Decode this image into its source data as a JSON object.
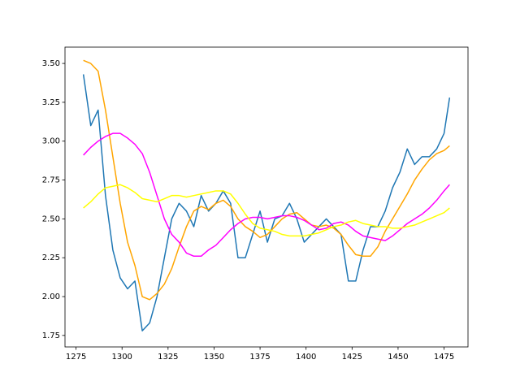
{
  "chart_data": {
    "type": "line",
    "x": [
      1279,
      1283,
      1287,
      1291,
      1295,
      1299,
      1303,
      1307,
      1311,
      1315,
      1319,
      1323,
      1327,
      1331,
      1335,
      1339,
      1343,
      1347,
      1351,
      1355,
      1359,
      1363,
      1367,
      1371,
      1375,
      1379,
      1383,
      1387,
      1391,
      1395,
      1399,
      1403,
      1407,
      1411,
      1415,
      1419,
      1423,
      1427,
      1431,
      1435,
      1439,
      1443,
      1447,
      1451,
      1455,
      1459,
      1463,
      1467,
      1471,
      1475,
      1478
    ],
    "series": [
      {
        "color": "#1f77b4",
        "values": [
          3.43,
          3.1,
          3.2,
          2.65,
          2.3,
          2.12,
          2.05,
          2.1,
          1.78,
          1.83,
          2.0,
          2.25,
          2.5,
          2.6,
          2.55,
          2.45,
          2.65,
          2.55,
          2.6,
          2.68,
          2.6,
          2.25,
          2.25,
          2.4,
          2.55,
          2.35,
          2.5,
          2.52,
          2.6,
          2.5,
          2.35,
          2.4,
          2.45,
          2.5,
          2.45,
          2.4,
          2.1,
          2.1,
          2.3,
          2.45,
          2.45,
          2.55,
          2.7,
          2.8,
          2.95,
          2.85,
          2.9,
          2.9,
          2.95,
          3.05,
          3.28
        ]
      },
      {
        "color": "#ffa500",
        "values": [
          3.52,
          3.5,
          3.45,
          3.2,
          2.9,
          2.6,
          2.35,
          2.2,
          2.0,
          1.98,
          2.02,
          2.08,
          2.18,
          2.32,
          2.45,
          2.55,
          2.58,
          2.56,
          2.6,
          2.62,
          2.58,
          2.5,
          2.45,
          2.42,
          2.38,
          2.4,
          2.45,
          2.5,
          2.53,
          2.54,
          2.5,
          2.46,
          2.45,
          2.46,
          2.44,
          2.4,
          2.33,
          2.27,
          2.26,
          2.26,
          2.32,
          2.42,
          2.5,
          2.58,
          2.66,
          2.75,
          2.82,
          2.88,
          2.92,
          2.94,
          2.97
        ]
      },
      {
        "color": "#ff00ff",
        "values": [
          2.91,
          2.96,
          3.0,
          3.03,
          3.05,
          3.05,
          3.02,
          2.98,
          2.92,
          2.8,
          2.65,
          2.5,
          2.4,
          2.35,
          2.28,
          2.26,
          2.26,
          2.3,
          2.33,
          2.38,
          2.43,
          2.47,
          2.5,
          2.51,
          2.51,
          2.5,
          2.51,
          2.52,
          2.52,
          2.51,
          2.49,
          2.46,
          2.43,
          2.44,
          2.47,
          2.48,
          2.46,
          2.42,
          2.39,
          2.38,
          2.37,
          2.36,
          2.39,
          2.43,
          2.47,
          2.5,
          2.53,
          2.57,
          2.62,
          2.68,
          2.72
        ]
      },
      {
        "color": "#ffff00",
        "values": [
          2.57,
          2.61,
          2.66,
          2.7,
          2.71,
          2.72,
          2.7,
          2.67,
          2.63,
          2.62,
          2.61,
          2.63,
          2.65,
          2.65,
          2.64,
          2.65,
          2.66,
          2.67,
          2.68,
          2.68,
          2.66,
          2.6,
          2.53,
          2.47,
          2.44,
          2.43,
          2.42,
          2.4,
          2.39,
          2.39,
          2.39,
          2.4,
          2.41,
          2.43,
          2.45,
          2.46,
          2.48,
          2.49,
          2.47,
          2.46,
          2.45,
          2.45,
          2.44,
          2.44,
          2.45,
          2.46,
          2.48,
          2.5,
          2.52,
          2.54,
          2.57
        ]
      }
    ],
    "xlim": [
      1269,
      1488
    ],
    "xticks": [
      1275,
      1300,
      1325,
      1350,
      1375,
      1400,
      1425,
      1450,
      1475
    ],
    "ylim": [
      1.676,
      3.605
    ],
    "yticks": [
      1.75,
      {
        "value": 2,
        "label": "2.00"
      },
      2.25,
      {
        "value": 2.5,
        "label": "2.50"
      },
      2.75,
      {
        "value": 3,
        "label": "3.00"
      },
      3.25,
      {
        "value": 3.5,
        "label": "3.50"
      }
    ]
  }
}
